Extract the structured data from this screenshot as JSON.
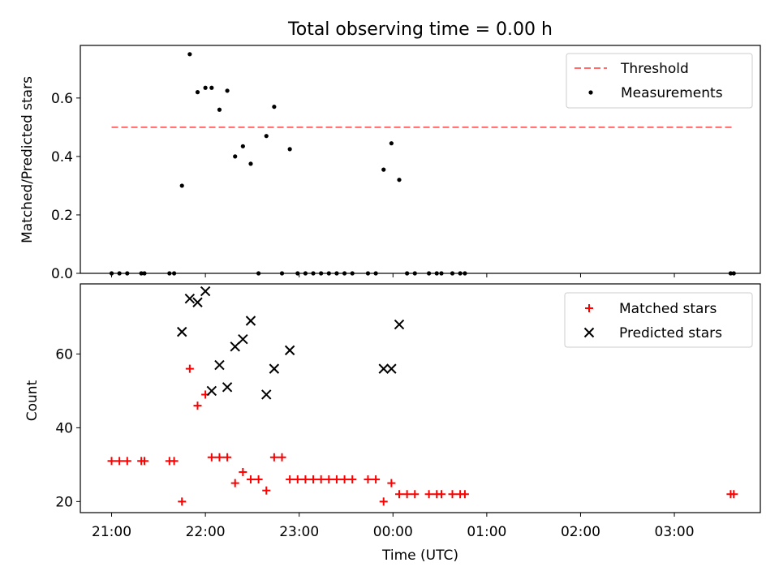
{
  "figure_title": "Total observing time = 0.00 h",
  "chart_data": [
    {
      "type": "scatter",
      "panel": "top",
      "ylabel": "Matched/Predicted stars",
      "ylim": [
        0,
        0.78
      ],
      "yticks": [
        0.0,
        0.2,
        0.4,
        0.6
      ],
      "ytick_labels": [
        "0.0",
        "0.2",
        "0.4",
        "0.6"
      ],
      "xlim": [
        "20:40",
        "03:55"
      ],
      "xticks": [
        "21:00",
        "22:00",
        "23:00",
        "00:00",
        "01:00",
        "02:00",
        "03:00"
      ],
      "threshold": {
        "name": "Threshold",
        "y": 0.5,
        "x_range": [
          "21:00",
          "03:38"
        ],
        "color": "#ff6b6b"
      },
      "legend": {
        "position": "top-right",
        "entries": [
          "Threshold",
          "Measurements"
        ]
      },
      "series": [
        {
          "name": "Measurements",
          "color": "#000000",
          "points": [
            [
              "21:00",
              0
            ],
            [
              "21:05",
              0
            ],
            [
              "21:10",
              0
            ],
            [
              "21:19",
              0
            ],
            [
              "21:21",
              0
            ],
            [
              "21:37",
              0
            ],
            [
              "21:40",
              0
            ],
            [
              "21:45",
              0.3
            ],
            [
              "21:50",
              0.75
            ],
            [
              "21:55",
              0.62
            ],
            [
              "22:00",
              0.635
            ],
            [
              "22:04",
              0.635
            ],
            [
              "22:09",
              0.56
            ],
            [
              "22:14",
              0.625
            ],
            [
              "22:19",
              0.4
            ],
            [
              "22:24",
              0.435
            ],
            [
              "22:29",
              0.375
            ],
            [
              "22:34",
              0
            ],
            [
              "22:39",
              0.47
            ],
            [
              "22:44",
              0.57
            ],
            [
              "22:49",
              0
            ],
            [
              "22:54",
              0.425
            ],
            [
              "22:59",
              0
            ],
            [
              "23:04",
              0
            ],
            [
              "23:09",
              0
            ],
            [
              "23:14",
              0
            ],
            [
              "23:19",
              0
            ],
            [
              "23:24",
              0
            ],
            [
              "23:29",
              0
            ],
            [
              "23:34",
              0
            ],
            [
              "23:44",
              0
            ],
            [
              "23:49",
              0
            ],
            [
              "23:54",
              0.355
            ],
            [
              "23:59",
              0.445
            ],
            [
              "00:04",
              0.32
            ],
            [
              "00:09",
              0
            ],
            [
              "00:14",
              0
            ],
            [
              "00:23",
              0
            ],
            [
              "00:28",
              0
            ],
            [
              "00:31",
              0
            ],
            [
              "00:38",
              0
            ],
            [
              "00:43",
              0
            ],
            [
              "00:46",
              0
            ],
            [
              "03:36",
              0
            ],
            [
              "03:38",
              0
            ]
          ]
        }
      ]
    },
    {
      "type": "scatter",
      "panel": "bottom",
      "xlabel": "Time (UTC)",
      "ylabel": "Count",
      "ylim": [
        17,
        79
      ],
      "yticks": [
        20,
        40,
        60
      ],
      "ytick_labels": [
        "20",
        "40",
        "60"
      ],
      "xlim": [
        "20:40",
        "03:55"
      ],
      "xticks": [
        "21:00",
        "22:00",
        "23:00",
        "00:00",
        "01:00",
        "02:00",
        "03:00"
      ],
      "xtick_labels": [
        "21:00",
        "22:00",
        "23:00",
        "00:00",
        "01:00",
        "02:00",
        "03:00"
      ],
      "legend": {
        "position": "top-right",
        "entries": [
          "Matched stars",
          "Predicted stars"
        ]
      },
      "series": [
        {
          "name": "Matched stars",
          "marker": "plus",
          "color": "#ff0000",
          "points": [
            [
              "21:00",
              31
            ],
            [
              "21:05",
              31
            ],
            [
              "21:10",
              31
            ],
            [
              "21:19",
              31
            ],
            [
              "21:21",
              31
            ],
            [
              "21:37",
              31
            ],
            [
              "21:40",
              31
            ],
            [
              "21:45",
              20
            ],
            [
              "21:50",
              56
            ],
            [
              "21:55",
              46
            ],
            [
              "22:00",
              49
            ],
            [
              "22:04",
              32
            ],
            [
              "22:09",
              32
            ],
            [
              "22:14",
              32
            ],
            [
              "22:19",
              25
            ],
            [
              "22:24",
              28
            ],
            [
              "22:29",
              26
            ],
            [
              "22:34",
              26
            ],
            [
              "22:39",
              23
            ],
            [
              "22:44",
              32
            ],
            [
              "22:49",
              32
            ],
            [
              "22:54",
              26
            ],
            [
              "22:59",
              26
            ],
            [
              "23:04",
              26
            ],
            [
              "23:09",
              26
            ],
            [
              "23:14",
              26
            ],
            [
              "23:19",
              26
            ],
            [
              "23:24",
              26
            ],
            [
              "23:29",
              26
            ],
            [
              "23:34",
              26
            ],
            [
              "23:44",
              26
            ],
            [
              "23:49",
              26
            ],
            [
              "23:54",
              20
            ],
            [
              "23:59",
              25
            ],
            [
              "00:04",
              22
            ],
            [
              "00:09",
              22
            ],
            [
              "00:14",
              22
            ],
            [
              "00:23",
              22
            ],
            [
              "00:28",
              22
            ],
            [
              "00:31",
              22
            ],
            [
              "00:38",
              22
            ],
            [
              "00:43",
              22
            ],
            [
              "00:46",
              22
            ],
            [
              "03:36",
              22
            ],
            [
              "03:38",
              22
            ]
          ]
        },
        {
          "name": "Predicted stars",
          "marker": "x",
          "color": "#000000",
          "points": [
            [
              "21:45",
              66
            ],
            [
              "21:50",
              75
            ],
            [
              "21:55",
              74
            ],
            [
              "22:00",
              77
            ],
            [
              "22:04",
              50
            ],
            [
              "22:09",
              57
            ],
            [
              "22:14",
              51
            ],
            [
              "22:19",
              62
            ],
            [
              "22:24",
              64
            ],
            [
              "22:29",
              69
            ],
            [
              "22:39",
              49
            ],
            [
              "22:44",
              56
            ],
            [
              "22:54",
              61
            ],
            [
              "23:54",
              56
            ],
            [
              "23:59",
              56
            ],
            [
              "00:04",
              68
            ]
          ]
        }
      ]
    }
  ]
}
